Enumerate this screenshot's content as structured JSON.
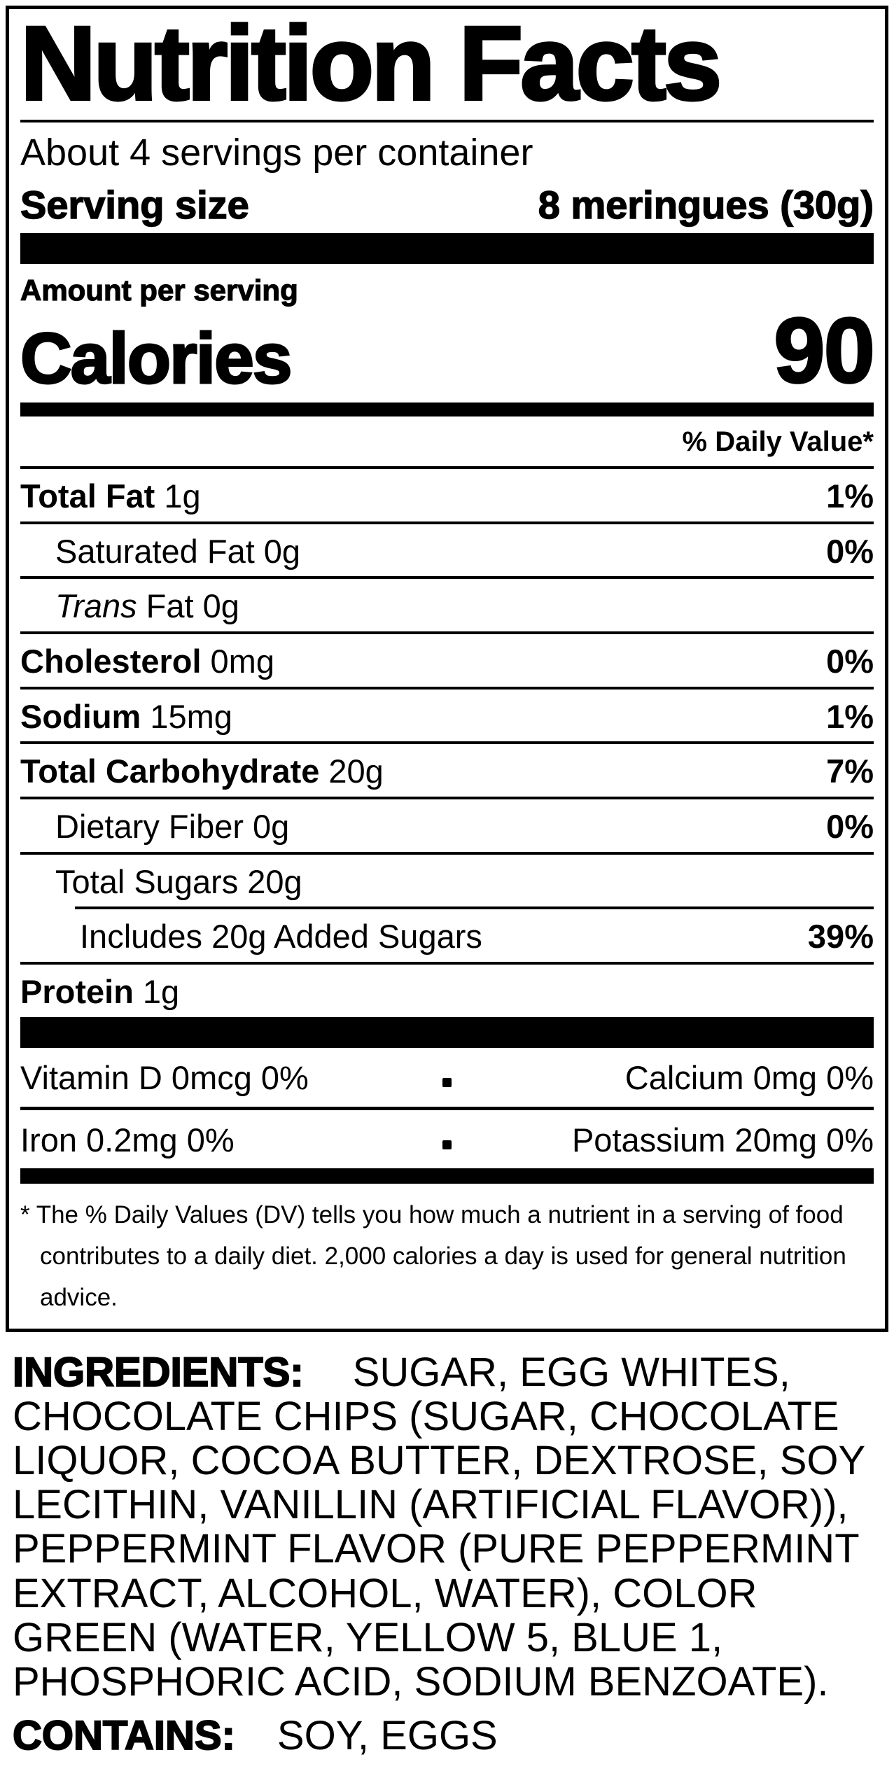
{
  "colors": {
    "ink": "#000000",
    "background": "#ffffff"
  },
  "label": {
    "title": "Nutrition Facts",
    "servings_per_container": "About 4 servings per container",
    "serving_size_label": "Serving size",
    "serving_size_value": "8 meringues (30g)",
    "amount_per_serving": "Amount per serving",
    "calories_label": "Calories",
    "calories_value": "90",
    "daily_value_header": "% Daily Value*",
    "rows": [
      {
        "name": "Total Fat",
        "amount": "1g",
        "dv": "1%"
      },
      {
        "name": "Saturated Fat",
        "amount": "0g",
        "dv": "0%"
      },
      {
        "name": "Trans",
        "amount": "Fat 0g",
        "dv": ""
      },
      {
        "name": "Cholesterol",
        "amount": "0mg",
        "dv": "0%"
      },
      {
        "name": "Sodium",
        "amount": "15mg",
        "dv": "1%"
      },
      {
        "name": "Total Carbohydrate",
        "amount": "20g",
        "dv": "7%"
      },
      {
        "name": "Dietary Fiber",
        "amount": "0g",
        "dv": "0%"
      },
      {
        "name": "Total Sugars",
        "amount": "20g",
        "dv": ""
      },
      {
        "name": "Includes 20g Added Sugars",
        "amount": "",
        "dv": "39%"
      },
      {
        "name": "Protein",
        "amount": "1g",
        "dv": ""
      }
    ],
    "vitamins": [
      {
        "left": "Vitamin D 0mcg 0%",
        "right": "Calcium 0mg 0%"
      },
      {
        "left": "Iron 0.2mg 0%",
        "right": "Potassium 20mg 0%"
      }
    ],
    "footnote": "* The % Daily Values (DV) tells you how much a nutrient in a serving of food contributes to a daily diet. 2,000 calories a day is used for general nutrition advice."
  },
  "ingredients": {
    "heading": "INGREDIENTS:",
    "text": "SUGAR, EGG WHITES, CHOCOLATE CHIPS (SUGAR, CHOCOLATE LIQUOR, COCOA BUTTER, DEXTROSE, SOY LECITHIN, VANILLIN (ARTIFICIAL FLAVOR)), PEPPERMINT FLAVOR (PURE PEPPERMINT EXTRACT, ALCOHOL, WATER), COLOR GREEN (WATER, YELLOW 5, BLUE 1, PHOSPHORIC ACID, SODIUM BENZOATE).",
    "contains_heading": "CONTAINS:",
    "contains_text": "SOY, EGGS"
  }
}
